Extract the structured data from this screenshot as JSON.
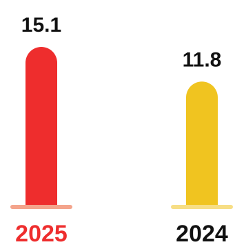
{
  "chart_data": {
    "type": "bar",
    "categories": [
      "2025",
      "2024"
    ],
    "values": [
      15.1,
      11.8
    ],
    "value_labels": [
      "15.1",
      "11.8"
    ],
    "bar_colors": [
      "#ee2d2d",
      "#f0c420"
    ],
    "base_colors": [
      "#f4a48c",
      "#f7de85"
    ],
    "category_label_colors": [
      "#ee2d2d",
      "#111111"
    ],
    "value_label_color": "#111111",
    "title": "",
    "xlabel": "",
    "ylabel": "",
    "ylim": [
      0,
      15.1
    ],
    "grid": false,
    "legend": "none"
  }
}
